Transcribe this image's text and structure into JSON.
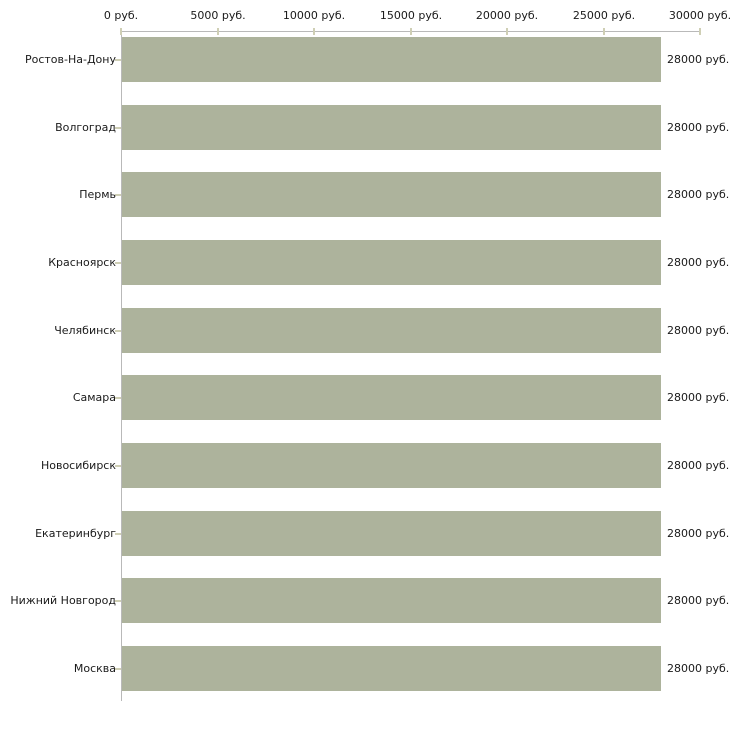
{
  "chart_data": {
    "type": "bar",
    "orientation": "horizontal",
    "title": "",
    "categories": [
      "Ростов-На-Дону",
      "Волгоград",
      "Пермь",
      "Красноярск",
      "Челябинск",
      "Самара",
      "Новосибирск",
      "Екатеринбург",
      "Нижний Новгород",
      "Москва"
    ],
    "values": [
      28000,
      28000,
      28000,
      28000,
      28000,
      28000,
      28000,
      28000,
      28000,
      28000
    ],
    "value_labels": [
      "28000 руб.",
      "28000 руб.",
      "28000 руб.",
      "28000 руб.",
      "28000 руб.",
      "28000 руб.",
      "28000 руб.",
      "28000 руб.",
      "28000 руб.",
      "28000 руб."
    ],
    "unit": "руб.",
    "xlabel": "",
    "ylabel": "",
    "xlim": [
      0,
      30000
    ],
    "x_tick_step": 5000,
    "x_tick_values": [
      0,
      5000,
      10000,
      15000,
      20000,
      25000,
      30000
    ],
    "x_tick_labels": [
      "0 руб.",
      "5000 руб.",
      "10000 руб.",
      "15000 руб.",
      "20000 руб.",
      "25000 руб.",
      "30000 руб."
    ],
    "grid": false,
    "legend": false,
    "colors": {
      "bar": "#adb39c",
      "axis": "#b9b9b9",
      "tick": "#cfcfb5",
      "text": "#1a1a1a",
      "background": "#ffffff"
    }
  }
}
